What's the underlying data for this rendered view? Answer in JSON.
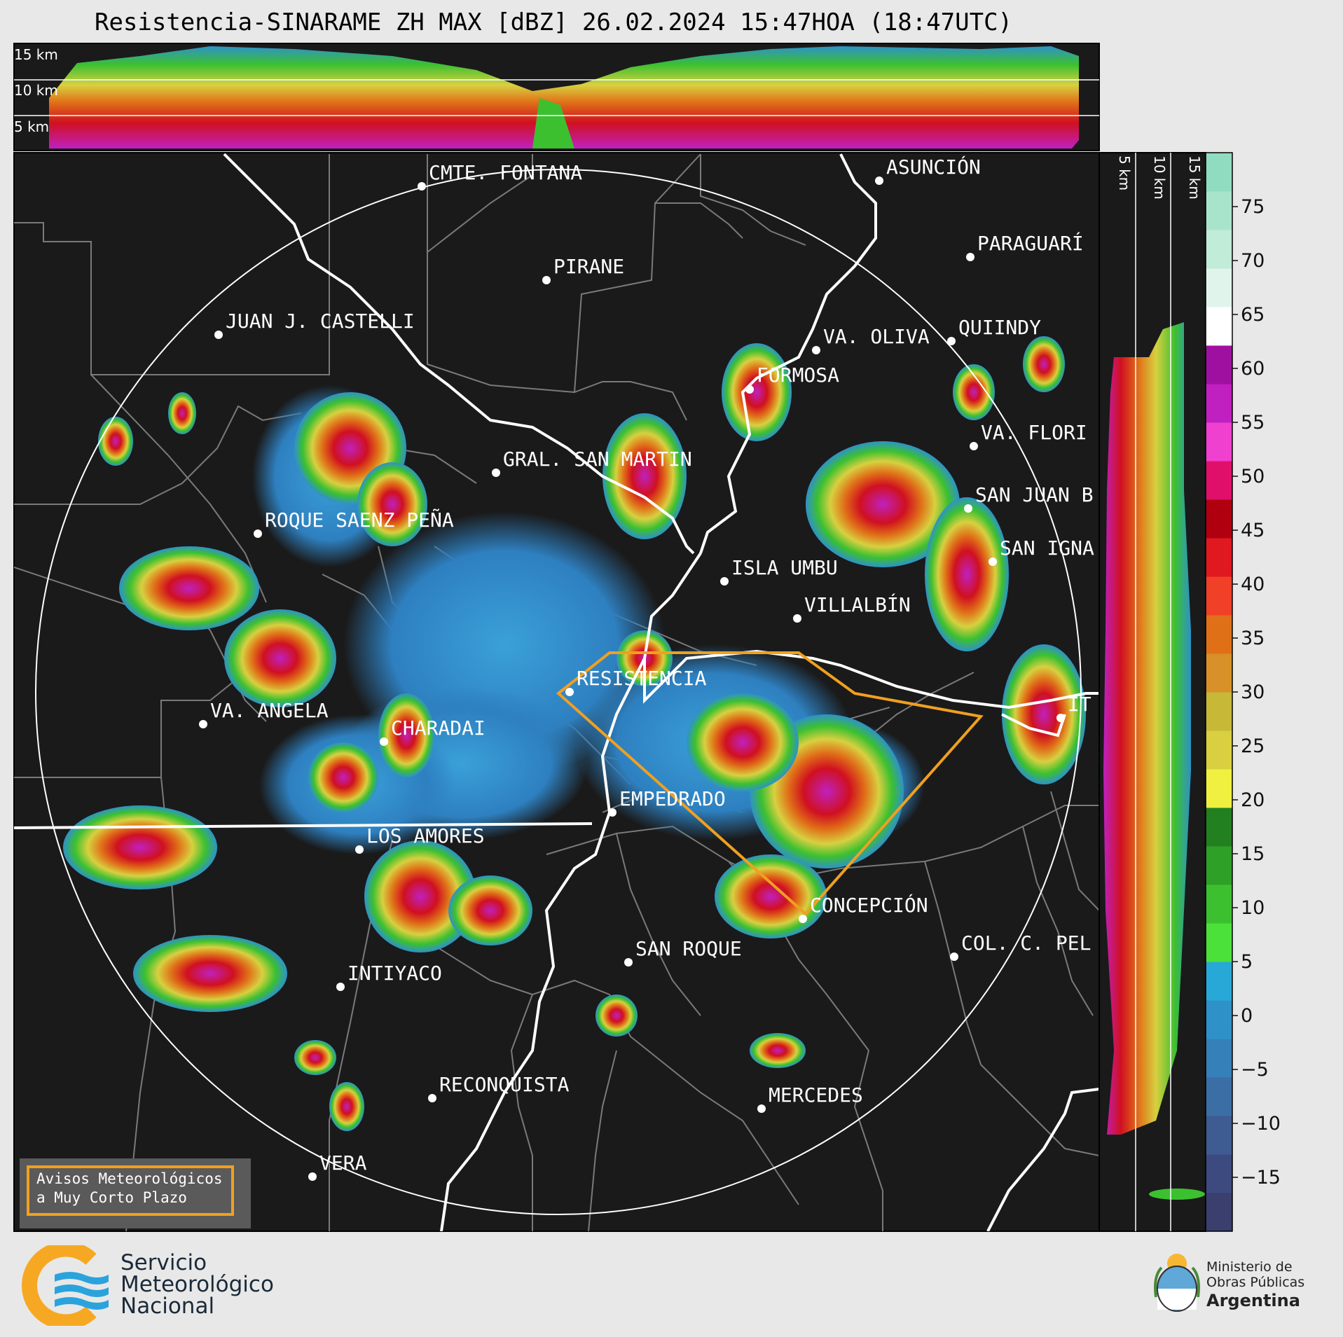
{
  "title": "Resistencia-SINARAME ZH MAX [dBZ] 26.02.2024 15:47HOA (18:47UTC)",
  "top_panel_altitudes": [
    "15 km",
    "10 km",
    "5 km"
  ],
  "side_panel_altitudes": [
    "5 km",
    "10 km",
    "15 km"
  ],
  "cities": [
    {
      "name": "CMTE. FONTANA"
    },
    {
      "name": "ASUNCIÓN"
    },
    {
      "name": "PARAGUARÍ"
    },
    {
      "name": "PIRANE"
    },
    {
      "name": "JUAN J. CASTELLI"
    },
    {
      "name": "VA. OLIVA"
    },
    {
      "name": "QUIINDY"
    },
    {
      "name": "FORMOSA"
    },
    {
      "name": "VA. FLORI"
    },
    {
      "name": "GRAL. SAN MARTIN"
    },
    {
      "name": "SAN JUAN B"
    },
    {
      "name": "ROQUE SAENZ PEÑA"
    },
    {
      "name": "SAN IGNA"
    },
    {
      "name": "ISLA UMBU"
    },
    {
      "name": "VILLALBÍN"
    },
    {
      "name": "RESISTENCIA"
    },
    {
      "name": "VA. ANGELA"
    },
    {
      "name": "CHARADAI"
    },
    {
      "name": "IT"
    },
    {
      "name": "EMPEDRADO"
    },
    {
      "name": "LOS AMORES"
    },
    {
      "name": "CONCEPCIÓN"
    },
    {
      "name": "SAN ROQUE"
    },
    {
      "name": "COL. C. PEL"
    },
    {
      "name": "INTIYACO"
    },
    {
      "name": "RECONQUISTA"
    },
    {
      "name": "MERCEDES"
    },
    {
      "name": "VERA"
    }
  ],
  "colorbar": {
    "ticks": [
      "75",
      "70",
      "65",
      "60",
      "55",
      "50",
      "45",
      "40",
      "35",
      "30",
      "25",
      "20",
      "15",
      "10",
      "5",
      "0",
      "−5",
      "−10",
      "−15"
    ],
    "colors": [
      "#3a3f6e",
      "#3c4a80",
      "#3f5c92",
      "#3b6ea5",
      "#3580b8",
      "#2e92c8",
      "#28a8d6",
      "#4ce03a",
      "#3cc030",
      "#2ea028",
      "#228020",
      "#f0f040",
      "#d8d040",
      "#c8b838",
      "#d89028",
      "#e07018",
      "#f04028",
      "#e01820",
      "#b00010",
      "#e0106a",
      "#f040d0",
      "#c020c0",
      "#a010a0",
      "#ffffff",
      "#e0f4ec",
      "#c0ecd8",
      "#a8e4cc",
      "#90dcc0"
    ]
  },
  "warning_legend": [
    "Avisos Meteorológicos",
    "a Muy Corto Plazo"
  ],
  "logo_smn": [
    "Servicio",
    "Meteorológico",
    "Nacional"
  ],
  "logo_ministry": [
    "Ministerio de",
    "Obras Públicas",
    "Argentina"
  ]
}
